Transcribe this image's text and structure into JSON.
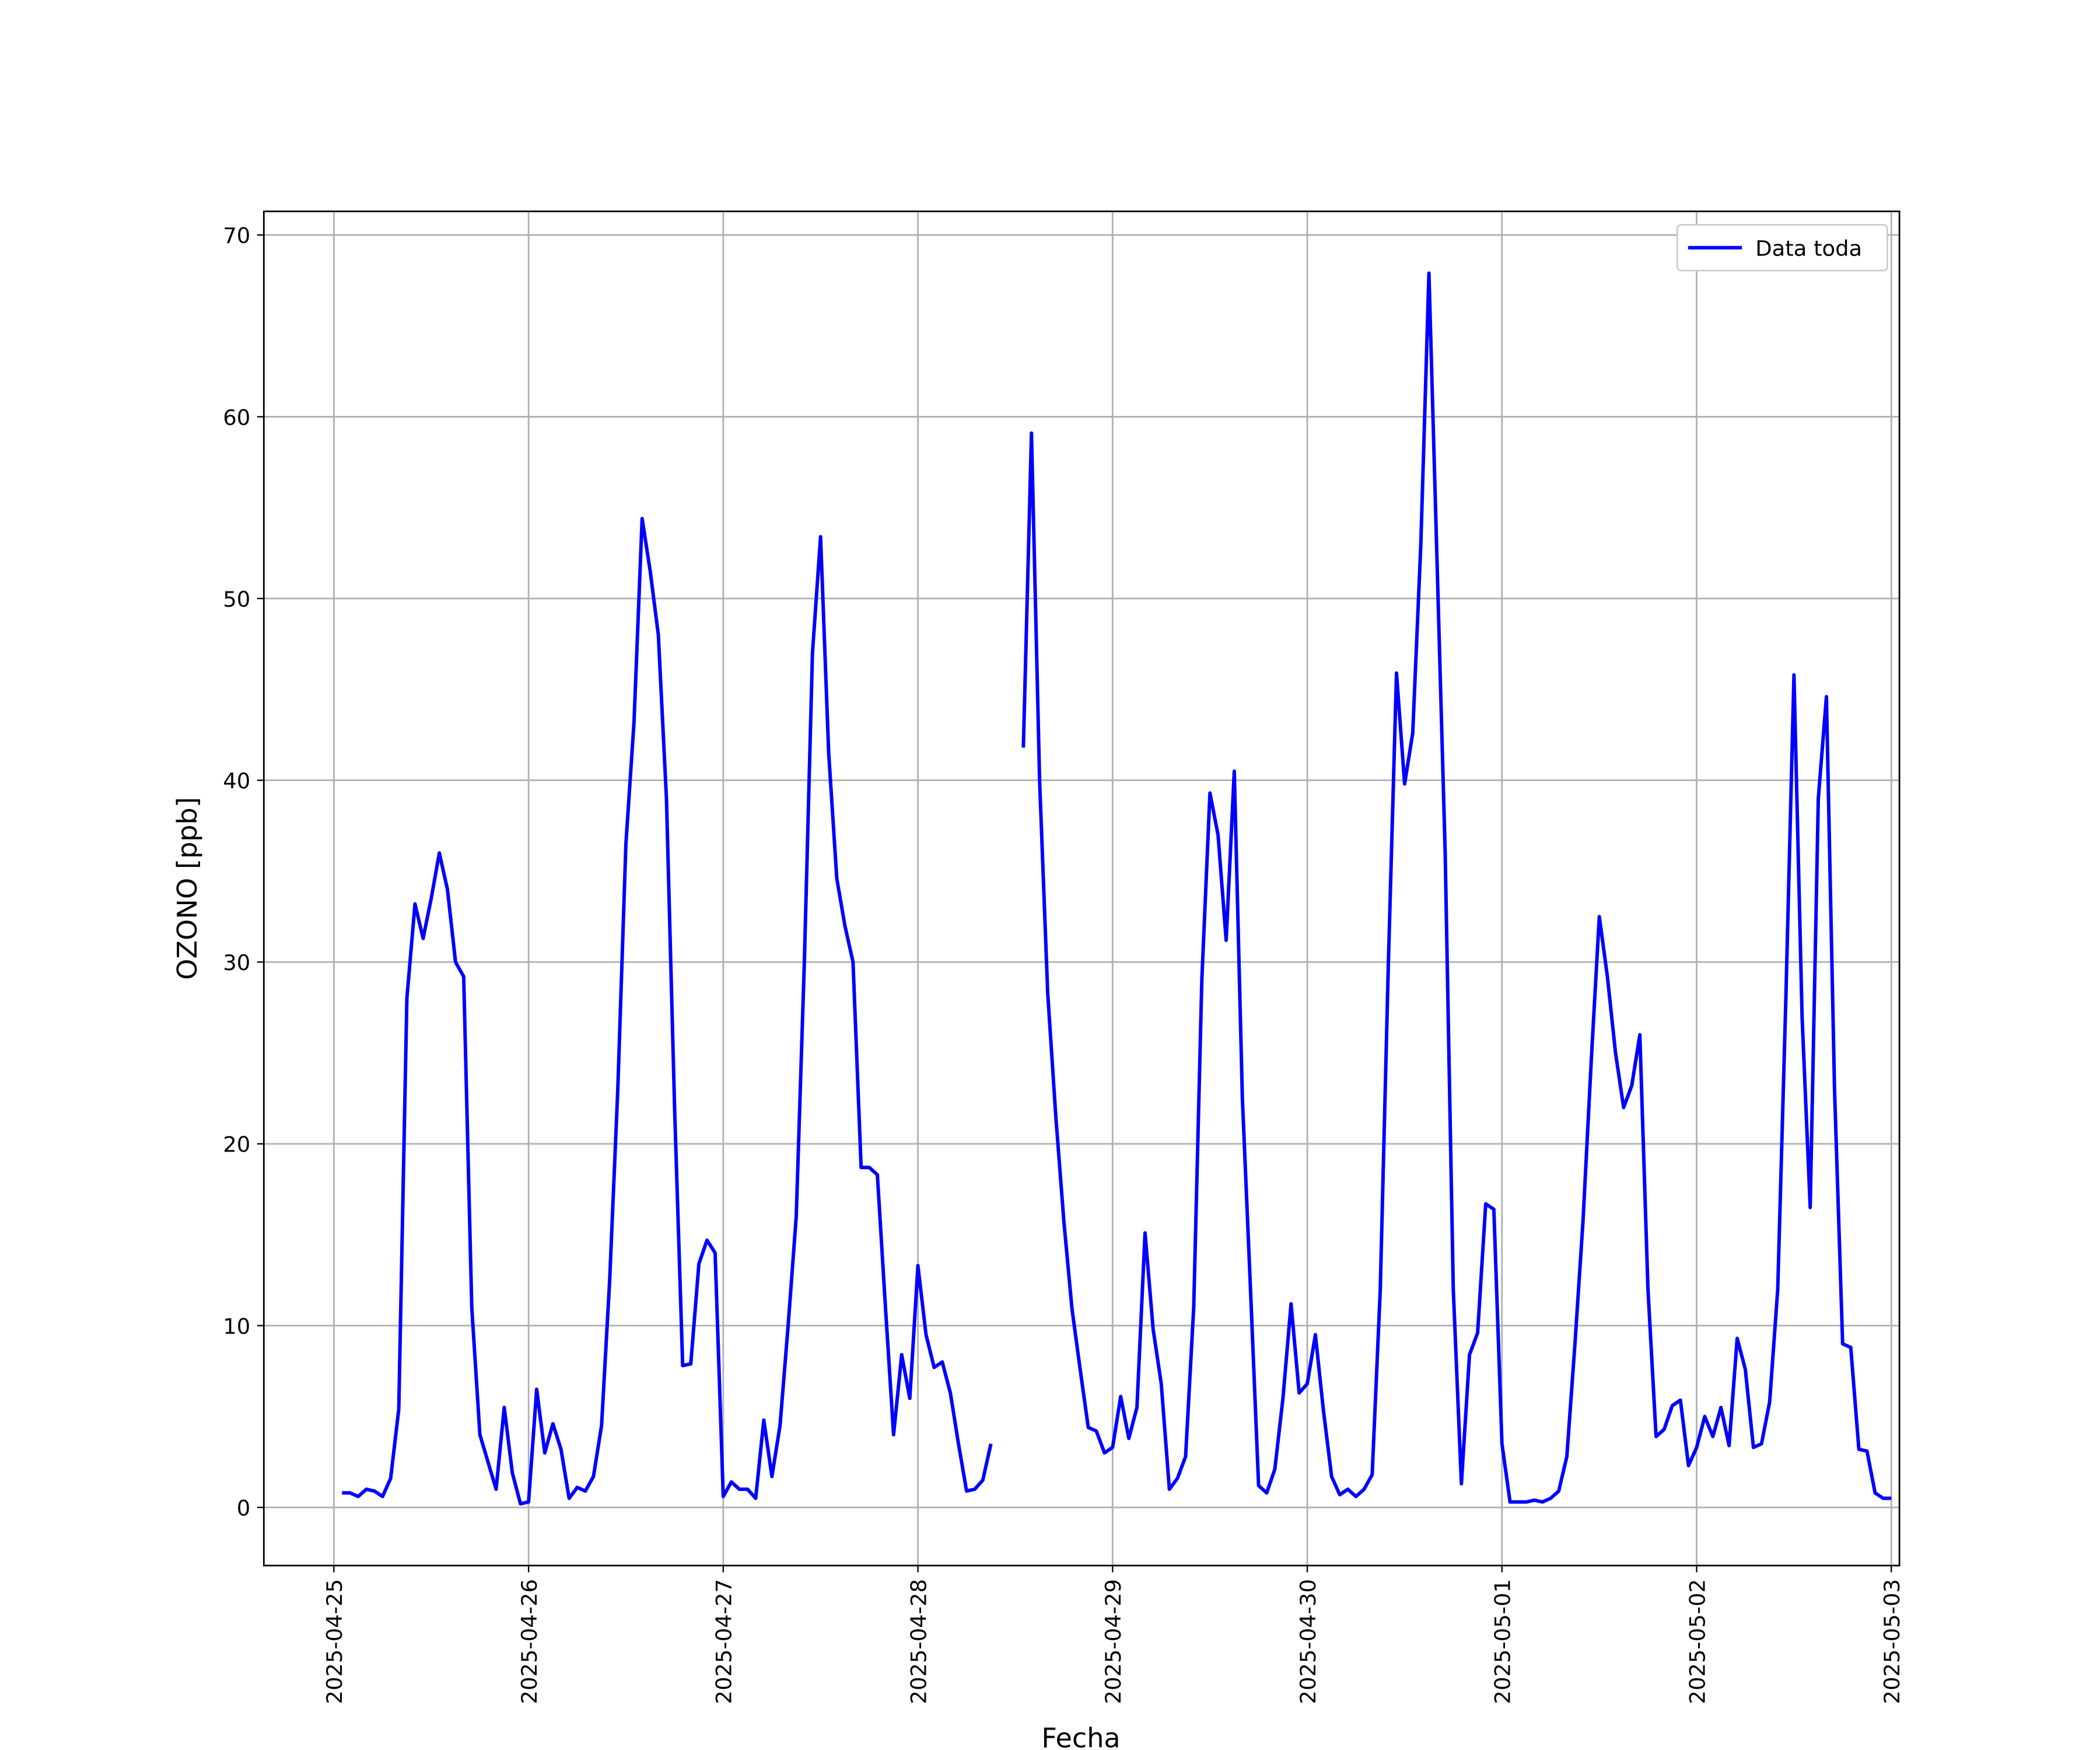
{
  "chart_data": {
    "type": "line",
    "xlabel": "Fecha",
    "ylabel": "OZONO [ppb]",
    "xlim": [
      "2025-04-24 15:22",
      "2025-05-03 01:00"
    ],
    "xticks": [
      "2025-04-25",
      "2025-04-26",
      "2025-04-27",
      "2025-04-28",
      "2025-04-29",
      "2025-04-30",
      "2025-05-01",
      "2025-05-02",
      "2025-05-03"
    ],
    "ylim": [
      -3.2,
      71.3
    ],
    "yticks": [
      0,
      10,
      20,
      30,
      40,
      50,
      60,
      70
    ],
    "grid": true,
    "legend": "upper right",
    "x": [
      "2025-04-25 01:00",
      "2025-04-25 02:00",
      "2025-04-25 03:00",
      "2025-04-25 04:00",
      "2025-04-25 05:00",
      "2025-04-25 06:00",
      "2025-04-25 07:00",
      "2025-04-25 08:00",
      "2025-04-25 09:00",
      "2025-04-25 10:00",
      "2025-04-25 11:00",
      "2025-04-25 12:00",
      "2025-04-25 13:00",
      "2025-04-25 14:00",
      "2025-04-25 15:00",
      "2025-04-25 16:00",
      "2025-04-25 17:00",
      "2025-04-25 18:00",
      "2025-04-25 19:00",
      "2025-04-25 20:00",
      "2025-04-25 21:00",
      "2025-04-25 22:00",
      "2025-04-25 23:00",
      "2025-04-26 00:00",
      "2025-04-26 01:00",
      "2025-04-26 02:00",
      "2025-04-26 03:00",
      "2025-04-26 04:00",
      "2025-04-26 05:00",
      "2025-04-26 06:00",
      "2025-04-26 07:00",
      "2025-04-26 08:00",
      "2025-04-26 09:00",
      "2025-04-26 10:00",
      "2025-04-26 11:00",
      "2025-04-26 12:00",
      "2025-04-26 13:00",
      "2025-04-26 14:00",
      "2025-04-26 15:00",
      "2025-04-26 16:00",
      "2025-04-26 17:00",
      "2025-04-26 18:00",
      "2025-04-26 19:00",
      "2025-04-26 20:00",
      "2025-04-26 21:00",
      "2025-04-26 22:00",
      "2025-04-26 23:00",
      "2025-04-27 00:00",
      "2025-04-27 01:00",
      "2025-04-27 02:00",
      "2025-04-27 03:00",
      "2025-04-27 04:00",
      "2025-04-27 05:00",
      "2025-04-27 06:00",
      "2025-04-27 07:00",
      "2025-04-27 08:00",
      "2025-04-27 09:00",
      "2025-04-27 10:00",
      "2025-04-27 11:00",
      "2025-04-27 12:00",
      "2025-04-27 13:00",
      "2025-04-27 14:00",
      "2025-04-27 15:00",
      "2025-04-27 16:00",
      "2025-04-27 17:00",
      "2025-04-27 18:00",
      "2025-04-27 19:00",
      "2025-04-27 20:00",
      "2025-04-27 21:00",
      "2025-04-27 22:00",
      "2025-04-27 23:00",
      "2025-04-28 00:00",
      "2025-04-28 01:00",
      "2025-04-28 02:00",
      "2025-04-28 03:00",
      "2025-04-28 04:00",
      "2025-04-28 05:00",
      "2025-04-28 06:00",
      "2025-04-28 07:00",
      "2025-04-28 08:00",
      "2025-04-28 09:00",
      "2025-04-28 10:00",
      "2025-04-28 11:00",
      "2025-04-28 12:00",
      "2025-04-28 13:00",
      "2025-04-28 14:00",
      "2025-04-28 15:00",
      "2025-04-28 16:00",
      "2025-04-28 17:00",
      "2025-04-28 18:00",
      "2025-04-28 19:00",
      "2025-04-28 20:00",
      "2025-04-28 21:00",
      "2025-04-28 22:00",
      "2025-04-28 23:00",
      "2025-04-29 00:00",
      "2025-04-29 01:00",
      "2025-04-29 02:00",
      "2025-04-29 03:00",
      "2025-04-29 04:00",
      "2025-04-29 05:00",
      "2025-04-29 06:00",
      "2025-04-29 07:00",
      "2025-04-29 08:00",
      "2025-04-29 09:00",
      "2025-04-29 10:00",
      "2025-04-29 11:00",
      "2025-04-29 12:00",
      "2025-04-29 13:00",
      "2025-04-29 14:00",
      "2025-04-29 15:00",
      "2025-04-29 16:00",
      "2025-04-29 17:00",
      "2025-04-29 18:00",
      "2025-04-29 19:00",
      "2025-04-29 20:00",
      "2025-04-29 21:00",
      "2025-04-29 22:00",
      "2025-04-29 23:00",
      "2025-04-30 00:00",
      "2025-04-30 01:00",
      "2025-04-30 02:00",
      "2025-04-30 03:00",
      "2025-04-30 04:00",
      "2025-04-30 05:00",
      "2025-04-30 06:00",
      "2025-04-30 07:00",
      "2025-04-30 08:00",
      "2025-04-30 09:00",
      "2025-04-30 10:00",
      "2025-04-30 11:00",
      "2025-04-30 12:00",
      "2025-04-30 13:00",
      "2025-04-30 14:00",
      "2025-04-30 15:00",
      "2025-04-30 16:00",
      "2025-04-30 17:00",
      "2025-04-30 18:00",
      "2025-04-30 19:00",
      "2025-04-30 20:00",
      "2025-04-30 21:00",
      "2025-04-30 22:00",
      "2025-04-30 23:00",
      "2025-05-01 00:00",
      "2025-05-01 01:00",
      "2025-05-01 02:00",
      "2025-05-01 03:00",
      "2025-05-01 04:00",
      "2025-05-01 05:00",
      "2025-05-01 06:00",
      "2025-05-01 07:00",
      "2025-05-01 08:00",
      "2025-05-01 09:00",
      "2025-05-01 10:00",
      "2025-05-01 11:00",
      "2025-05-01 12:00",
      "2025-05-01 13:00",
      "2025-05-01 14:00",
      "2025-05-01 15:00",
      "2025-05-01 16:00",
      "2025-05-01 17:00",
      "2025-05-01 18:00",
      "2025-05-01 19:00",
      "2025-05-01 20:00",
      "2025-05-01 21:00",
      "2025-05-01 22:00",
      "2025-05-01 23:00",
      "2025-05-02 00:00",
      "2025-05-02 01:00",
      "2025-05-02 02:00",
      "2025-05-02 03:00",
      "2025-05-02 04:00",
      "2025-05-02 05:00",
      "2025-05-02 06:00",
      "2025-05-02 07:00",
      "2025-05-02 08:00",
      "2025-05-02 09:00",
      "2025-05-02 10:00",
      "2025-05-02 11:00",
      "2025-05-02 12:00",
      "2025-05-02 13:00",
      "2025-05-02 14:00",
      "2025-05-02 15:00",
      "2025-05-02 16:00",
      "2025-05-02 17:00",
      "2025-05-02 18:00",
      "2025-05-02 19:00",
      "2025-05-02 20:00",
      "2025-05-02 21:00",
      "2025-05-02 22:00",
      "2025-05-02 23:00",
      "2025-05-03 00:00"
    ],
    "series": [
      {
        "name": "Data toda",
        "color": "#0000ff",
        "values": [
          0.8,
          0.8,
          0.6,
          1.0,
          0.9,
          0.6,
          1.6,
          5.4,
          28,
          33.2,
          31.3,
          33.5,
          36,
          34,
          30,
          29.2,
          11,
          4,
          2.5,
          1.0,
          5.5,
          1.9,
          0.2,
          0.3,
          6.5,
          3.0,
          4.6,
          3.2,
          0.5,
          1.1,
          0.9,
          1.7,
          4.5,
          12.5,
          23,
          36.5,
          43.2,
          54.4,
          51.5,
          48,
          39,
          22,
          7.8,
          7.9,
          13.4,
          14.7,
          14,
          0.6,
          1.4,
          1.0,
          1.0,
          0.5,
          4.8,
          1.7,
          4.5,
          10,
          16,
          30,
          47,
          53.4,
          41.5,
          34.6,
          32,
          30,
          18.7,
          18.7,
          18.3,
          11,
          4.0,
          8.4,
          6.0,
          13.3,
          9.5,
          7.7,
          8.0,
          6.3,
          3.5,
          0.9,
          1.0,
          1.5,
          3.5,
          null,
          null,
          null,
          41.8,
          59.1,
          40,
          28.3,
          21.5,
          15.7,
          10.9,
          7.6,
          4.4,
          4.2,
          3.0,
          3.3,
          6.1,
          3.8,
          5.5,
          15.1,
          9.8,
          6.8,
          1.0,
          1.6,
          2.8,
          11,
          29,
          39.3,
          37,
          31.2,
          40.5,
          22.5,
          12,
          1.2,
          0.8,
          2.1,
          6,
          11.2,
          6.3,
          6.8,
          9.5,
          5.3,
          1.7,
          0.7,
          1.0,
          0.6,
          1.0,
          1.8,
          12,
          30,
          45.9,
          39.8,
          42.6,
          53,
          67.9,
          52,
          36,
          12,
          1.3,
          8.4,
          9.6,
          16.7,
          16.4,
          3.5,
          0.3,
          0.3,
          0.3,
          0.4,
          0.3,
          0.5,
          0.9,
          2.8,
          9,
          15.8,
          24.5,
          32.5,
          29.2,
          25,
          22,
          23.2,
          26,
          12,
          3.9,
          4.3,
          5.6,
          5.9,
          2.3,
          3.3,
          5.0,
          3.9,
          5.5,
          3.4,
          9.3,
          7.6,
          3.3,
          3.5,
          5.8,
          12,
          28,
          45.8,
          27,
          16.5,
          39,
          44.6,
          23,
          9.0,
          8.8,
          3.2,
          3.1,
          0.8,
          0.5,
          0.5
        ]
      }
    ]
  }
}
